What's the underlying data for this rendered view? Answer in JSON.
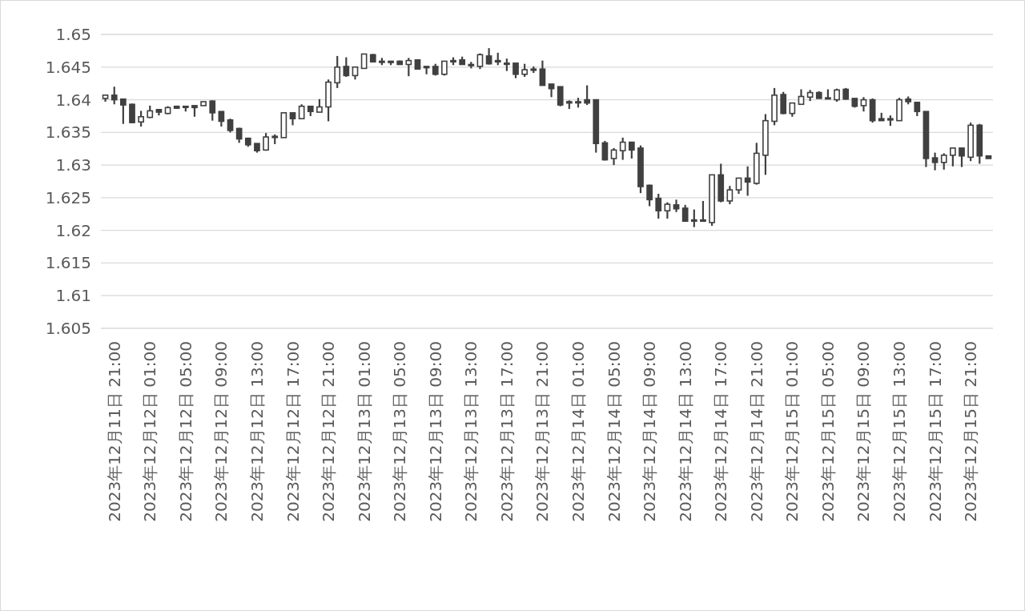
{
  "chart_data": {
    "type": "candlestick",
    "categories": [
      null,
      "2023年12月11日 21:00",
      null,
      null,
      null,
      "2023年12月12日 01:00",
      null,
      null,
      null,
      "2023年12月12日 05:00",
      null,
      null,
      null,
      "2023年12月12日 09:00",
      null,
      null,
      null,
      "2023年12月12日 13:00",
      null,
      null,
      null,
      "2023年12月12日 17:00",
      null,
      null,
      null,
      "2023年12月12日 21:00",
      null,
      null,
      null,
      "2023年12月13日 01:00",
      null,
      null,
      null,
      "2023年12月13日 05:00",
      null,
      null,
      null,
      "2023年12月13日 09:00",
      null,
      null,
      null,
      "2023年12月13日 13:00",
      null,
      null,
      null,
      "2023年12月13日 17:00",
      null,
      null,
      null,
      "2023年12月13日 21:00",
      null,
      null,
      null,
      "2023年12月14日 01:00",
      null,
      null,
      null,
      "2023年12月14日 05:00",
      null,
      null,
      null,
      "2023年12月14日 09:00",
      null,
      null,
      null,
      "2023年12月14日 13:00",
      null,
      null,
      null,
      "2023年12月14日 17:00",
      null,
      null,
      null,
      "2023年12月14日 21:00",
      null,
      null,
      null,
      "2023年12月15日 01:00",
      null,
      null,
      null,
      "2023年12月15日 05:00",
      null,
      null,
      null,
      "2023年12月15日 09:00",
      null,
      null,
      null,
      "2023年12月15日 13:00",
      null,
      null,
      null,
      "2023年12月15日 17:00",
      null,
      null,
      null,
      "2023年12月15日 21:00",
      null,
      null
    ],
    "ohlc": [
      [
        1.6402,
        1.6408,
        1.6397,
        1.6407
      ],
      [
        1.6407,
        1.642,
        1.6393,
        1.64
      ],
      [
        1.6401,
        1.6401,
        1.6363,
        1.6392
      ],
      [
        1.6393,
        1.6394,
        1.6364,
        1.6365
      ],
      [
        1.6366,
        1.6383,
        1.6359,
        1.6374
      ],
      [
        1.6373,
        1.6391,
        1.6372,
        1.6383
      ],
      [
        1.6385,
        1.6386,
        1.6376,
        1.6381
      ],
      [
        1.6379,
        1.639,
        1.6378,
        1.6388
      ],
      [
        1.639,
        1.6391,
        1.6386,
        1.6387
      ],
      [
        1.639,
        1.639,
        1.6382,
        1.6389
      ],
      [
        1.6391,
        1.6391,
        1.6374,
        1.6388
      ],
      [
        1.6391,
        1.6397,
        1.6391,
        1.6397
      ],
      [
        1.6398,
        1.6399,
        1.6368,
        1.638
      ],
      [
        1.6382,
        1.6382,
        1.6359,
        1.6367
      ],
      [
        1.6369,
        1.6371,
        1.635,
        1.6353
      ],
      [
        1.6356,
        1.6357,
        1.6334,
        1.634
      ],
      [
        1.6341,
        1.6342,
        1.6328,
        1.6331
      ],
      [
        1.6333,
        1.6333,
        1.6319,
        1.6322
      ],
      [
        1.6323,
        1.6349,
        1.6322,
        1.6343
      ],
      [
        1.6343,
        1.6347,
        1.6332,
        1.6344
      ],
      [
        1.6342,
        1.638,
        1.6342,
        1.638
      ],
      [
        1.638,
        1.638,
        1.6361,
        1.6371
      ],
      [
        1.6371,
        1.6393,
        1.6371,
        1.639
      ],
      [
        1.639,
        1.639,
        1.6375,
        1.6382
      ],
      [
        1.6381,
        1.6401,
        1.6381,
        1.6389
      ],
      [
        1.6389,
        1.6431,
        1.6367,
        1.6427
      ],
      [
        1.6426,
        1.6467,
        1.6418,
        1.645
      ],
      [
        1.6451,
        1.6465,
        1.6435,
        1.6437
      ],
      [
        1.6437,
        1.645,
        1.6431,
        1.645
      ],
      [
        1.6448,
        1.647,
        1.6448,
        1.647
      ],
      [
        1.6469,
        1.647,
        1.6458,
        1.6458
      ],
      [
        1.6459,
        1.6464,
        1.6453,
        1.6458
      ],
      [
        1.6459,
        1.6459,
        1.6453,
        1.6457
      ],
      [
        1.6459,
        1.646,
        1.6454,
        1.6454
      ],
      [
        1.6454,
        1.6464,
        1.6436,
        1.646
      ],
      [
        1.6461,
        1.6461,
        1.6447,
        1.6447
      ],
      [
        1.6451,
        1.6451,
        1.6439,
        1.6449
      ],
      [
        1.6451,
        1.6455,
        1.6437,
        1.6439
      ],
      [
        1.6439,
        1.6459,
        1.6437,
        1.6459
      ],
      [
        1.6458,
        1.6465,
        1.6453,
        1.646
      ],
      [
        1.6461,
        1.6466,
        1.6454,
        1.6454
      ],
      [
        1.6453,
        1.6458,
        1.6448,
        1.6454
      ],
      [
        1.6451,
        1.6471,
        1.6447,
        1.6469
      ],
      [
        1.6467,
        1.6479,
        1.6454,
        1.6455
      ],
      [
        1.646,
        1.6472,
        1.6453,
        1.6458
      ],
      [
        1.6456,
        1.6463,
        1.6444,
        1.6455
      ],
      [
        1.6456,
        1.6456,
        1.6433,
        1.6439
      ],
      [
        1.6439,
        1.6455,
        1.6435,
        1.6446
      ],
      [
        1.6447,
        1.6451,
        1.6441,
        1.6446
      ],
      [
        1.6447,
        1.646,
        1.6422,
        1.6422
      ],
      [
        1.6424,
        1.6424,
        1.6404,
        1.6417
      ],
      [
        1.642,
        1.642,
        1.639,
        1.6392
      ],
      [
        1.6397,
        1.6399,
        1.6386,
        1.6395
      ],
      [
        1.6396,
        1.6403,
        1.6388,
        1.6397
      ],
      [
        1.64,
        1.6422,
        1.6392,
        1.6395
      ],
      [
        1.64,
        1.64,
        1.6319,
        1.6333
      ],
      [
        1.6334,
        1.6337,
        1.6307,
        1.6308
      ],
      [
        1.631,
        1.6326,
        1.63,
        1.6323
      ],
      [
        1.6322,
        1.6342,
        1.6308,
        1.6335
      ],
      [
        1.6335,
        1.6335,
        1.631,
        1.6323
      ],
      [
        1.6326,
        1.633,
        1.6257,
        1.6267
      ],
      [
        1.6269,
        1.627,
        1.6237,
        1.6247
      ],
      [
        1.6249,
        1.6256,
        1.6218,
        1.623
      ],
      [
        1.623,
        1.6243,
        1.6218,
        1.624
      ],
      [
        1.6239,
        1.6247,
        1.6228,
        1.6233
      ],
      [
        1.6234,
        1.6239,
        1.6214,
        1.6214
      ],
      [
        1.6216,
        1.6232,
        1.6205,
        1.6215
      ],
      [
        1.6216,
        1.6245,
        1.6213,
        1.6214
      ],
      [
        1.6212,
        1.6285,
        1.6207,
        1.6285
      ],
      [
        1.6285,
        1.6302,
        1.6243,
        1.6245
      ],
      [
        1.6245,
        1.6268,
        1.624,
        1.6262
      ],
      [
        1.6262,
        1.628,
        1.6256,
        1.628
      ],
      [
        1.628,
        1.6298,
        1.6253,
        1.6274
      ],
      [
        1.6272,
        1.6334,
        1.627,
        1.6318
      ],
      [
        1.6315,
        1.6378,
        1.6285,
        1.6368
      ],
      [
        1.6367,
        1.6418,
        1.6361,
        1.6407
      ],
      [
        1.6408,
        1.6412,
        1.6378,
        1.6379
      ],
      [
        1.6379,
        1.6395,
        1.6374,
        1.6395
      ],
      [
        1.6393,
        1.6416,
        1.6393,
        1.6405
      ],
      [
        1.6404,
        1.6415,
        1.6398,
        1.6411
      ],
      [
        1.6411,
        1.6413,
        1.6402,
        1.6402
      ],
      [
        1.6403,
        1.6416,
        1.6401,
        1.6402
      ],
      [
        1.64,
        1.6417,
        1.6397,
        1.6415
      ],
      [
        1.6416,
        1.6418,
        1.64,
        1.6401
      ],
      [
        1.6402,
        1.6402,
        1.6388,
        1.639
      ],
      [
        1.6391,
        1.6404,
        1.6382,
        1.64
      ],
      [
        1.64,
        1.6402,
        1.6365,
        1.6368
      ],
      [
        1.6371,
        1.638,
        1.6368,
        1.6368
      ],
      [
        1.6371,
        1.6376,
        1.636,
        1.6369
      ],
      [
        1.6368,
        1.6403,
        1.6368,
        1.64
      ],
      [
        1.6401,
        1.6405,
        1.6393,
        1.6397
      ],
      [
        1.6396,
        1.6396,
        1.6375,
        1.6382
      ],
      [
        1.6382,
        1.6382,
        1.6297,
        1.631
      ],
      [
        1.6311,
        1.6319,
        1.6292,
        1.6304
      ],
      [
        1.6304,
        1.6318,
        1.6293,
        1.6315
      ],
      [
        1.6315,
        1.6326,
        1.6298,
        1.6326
      ],
      [
        1.6326,
        1.6326,
        1.6297,
        1.6314
      ],
      [
        1.6312,
        1.6365,
        1.6306,
        1.6361
      ],
      [
        1.6361,
        1.6363,
        1.6302,
        1.6314
      ],
      [
        1.6314,
        1.6314,
        1.631,
        1.631
      ]
    ],
    "ylim": [
      1.605,
      1.65
    ],
    "yticks": [
      1.605,
      1.61,
      1.615,
      1.62,
      1.625,
      1.63,
      1.635,
      1.64,
      1.645,
      1.65
    ],
    "grid": "y"
  }
}
